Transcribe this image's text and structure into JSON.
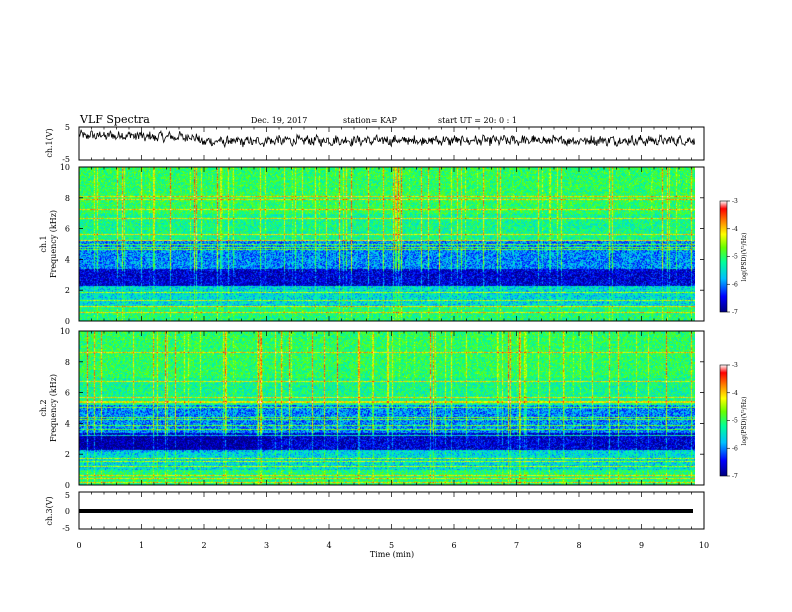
{
  "header": {
    "title": "VLF Spectra",
    "date": "Dec. 19, 2017",
    "station": "station= KAP",
    "start": "start  UT =   20: 0  : 1"
  },
  "colors": {
    "trace": "#000000",
    "colormap": [
      "#000080",
      "#0000ff",
      "#00bfff",
      "#00ff99",
      "#66ff00",
      "#ffff00",
      "#ff8000",
      "#ff0000",
      "#ffffff"
    ]
  },
  "chart_data": [
    {
      "type": "line",
      "id": "ch1-waveform",
      "ylabel": "ch.1(V)",
      "ylim": [
        -5,
        5
      ],
      "yticks": [
        "5",
        "-5"
      ],
      "xlim": [
        0,
        10
      ],
      "segments": [
        {
          "x_start": 0.0,
          "x_end": 1.0,
          "mean_v": 2.4
        },
        {
          "x_start": 1.0,
          "x_end": 1.9,
          "mean_v": 2.0
        },
        {
          "x_start": 1.9,
          "x_end": 3.0,
          "mean_v": 0.6
        },
        {
          "x_start": 3.0,
          "x_end": 9.85,
          "mean_v": 0.9
        }
      ]
    },
    {
      "type": "heatmap",
      "id": "ch1-spectrogram",
      "ylabel": "ch.1\nFrequency (kHz)",
      "ylim": [
        0,
        10
      ],
      "yticks": [
        "0",
        "2",
        "4",
        "6",
        "8",
        "10"
      ],
      "xlim": [
        0,
        10
      ],
      "data_extent_min": 9.85,
      "colorbar": {
        "label": "log(PSD)(V²/Hz)",
        "range": [
          -7,
          -3
        ],
        "ticks": [
          "-3",
          "-4",
          "-5",
          "-6",
          "-7"
        ]
      }
    },
    {
      "type": "heatmap",
      "id": "ch2-spectrogram",
      "ylabel": "ch.2\nFrequency (kHz)",
      "ylim": [
        0,
        10
      ],
      "yticks": [
        "0",
        "2",
        "4",
        "6",
        "8",
        "10"
      ],
      "xlim": [
        0,
        10
      ],
      "data_extent_min": 9.85,
      "colorbar": {
        "label": "log(PSD)(V²/Hz)",
        "range": [
          -7,
          -3
        ],
        "ticks": [
          "-3",
          "-4",
          "-5",
          "-6",
          "-7"
        ]
      }
    },
    {
      "type": "line",
      "id": "ch3-waveform",
      "ylabel": "ch.3(V)",
      "ylim": [
        -5,
        5
      ],
      "yticks": [
        "5",
        "0",
        "-5"
      ],
      "xlim": [
        0,
        10
      ],
      "segments": [
        {
          "x_start": 0.0,
          "x_end": 9.85,
          "mean_v": 0.0
        }
      ]
    }
  ],
  "xaxis": {
    "label": "Time (min)",
    "ticks": [
      "0",
      "1",
      "2",
      "3",
      "4",
      "5",
      "6",
      "7",
      "8",
      "9",
      "10"
    ]
  }
}
